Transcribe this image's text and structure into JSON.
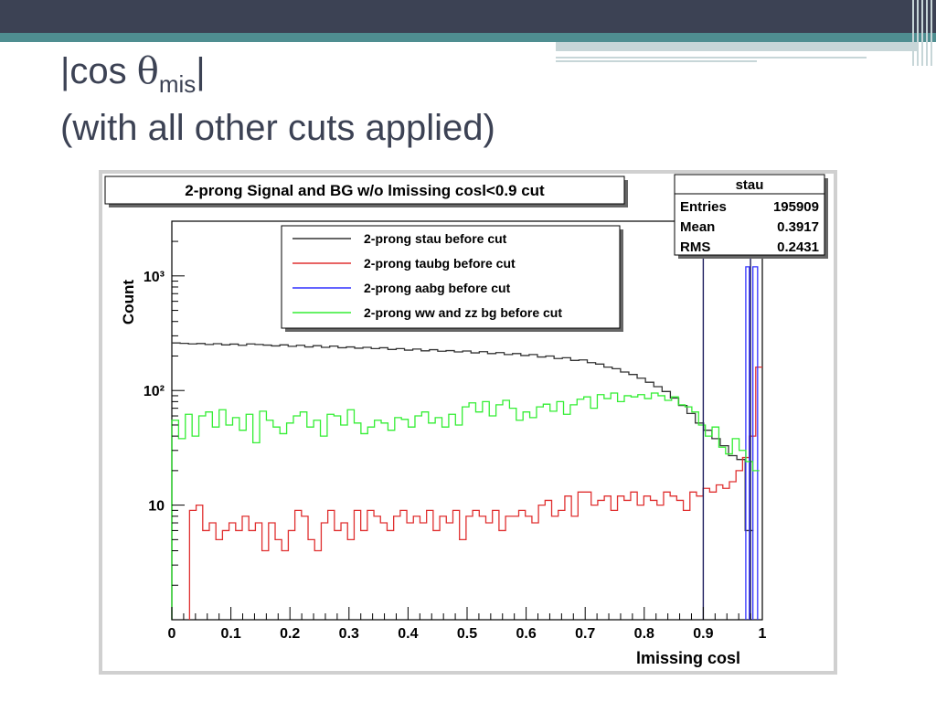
{
  "slide": {
    "title_prefix": "|cos ",
    "title_theta": "θ",
    "title_sub": "mis",
    "title_suffix": "|",
    "title_line2": "(with all other cuts applied)"
  },
  "chart_data": {
    "type": "line",
    "title": "2-prong Signal and BG w/o lmissing cosl<0.9 cut",
    "xlabel": "lmissing cosl",
    "ylabel": "Count",
    "xlim": [
      0,
      1
    ],
    "ylim": [
      1,
      3000
    ],
    "log_y": true,
    "grid": false,
    "legend_position": "top",
    "x_ticks": [
      "0",
      "0.1",
      "0.2",
      "0.3",
      "0.4",
      "0.5",
      "0.6",
      "0.7",
      "0.8",
      "0.9",
      "1"
    ],
    "y_ticks": [
      {
        "value": 10,
        "label": "10"
      },
      {
        "value": 100,
        "label": "10²"
      },
      {
        "value": 1000,
        "label": "10³"
      }
    ],
    "cut_lines": [
      0.9,
      0.98
    ],
    "stats_box": {
      "name": "stau",
      "rows": [
        {
          "label": "Entries",
          "value": "195909"
        },
        {
          "label": "Mean",
          "value": "0.3917"
        },
        {
          "label": "RMS",
          "value": "0.2431"
        }
      ]
    },
    "series": [
      {
        "name": "2-prong stau before cut",
        "color": "#333333",
        "values": [
          260,
          258,
          255,
          257,
          252,
          256,
          250,
          254,
          248,
          255,
          252,
          249,
          245,
          250,
          243,
          248,
          240,
          246,
          238,
          244,
          236,
          240,
          234,
          238,
          232,
          236,
          228,
          232,
          225,
          230,
          222,
          227,
          220,
          223,
          217,
          221,
          213,
          218,
          210,
          214,
          206,
          210,
          202,
          206,
          196,
          200,
          190,
          193,
          183,
          185,
          175,
          170,
          160,
          155,
          145,
          138,
          128,
          118,
          108,
          98,
          86,
          74,
          63,
          52,
          45,
          38,
          33,
          27,
          25,
          6
        ]
      },
      {
        "name": "2-prong taubg before cut",
        "color": "#e03030",
        "values": [
          9,
          10,
          6,
          7,
          5,
          6,
          7,
          6,
          8,
          6,
          7,
          4,
          7,
          5,
          4,
          6,
          9,
          8,
          5,
          4,
          7,
          9,
          6,
          7,
          5,
          9,
          6,
          9,
          8,
          7,
          6,
          8,
          9,
          7,
          8,
          7,
          9,
          6,
          8,
          7,
          9,
          5,
          8,
          9,
          8,
          7,
          9,
          6,
          8,
          8,
          9,
          8,
          7,
          10,
          11,
          8,
          9,
          12,
          8,
          13,
          13,
          10,
          11,
          12,
          9,
          12,
          11,
          13,
          10,
          12,
          11,
          10,
          13,
          12,
          11,
          9,
          13,
          12,
          14,
          13,
          15,
          14,
          16,
          20,
          26,
          40,
          160
        ]
      },
      {
        "name": "2-prong aabg before cut",
        "color": "#3030ff",
        "values": [
          1200
        ]
      },
      {
        "name": "2-prong ww and zz bg before cut",
        "color": "#33ee33",
        "values": [
          55,
          38,
          62,
          40,
          60,
          65,
          48,
          68,
          50,
          58,
          45,
          62,
          35,
          66,
          55,
          48,
          42,
          52,
          60,
          65,
          48,
          55,
          40,
          62,
          60,
          50,
          68,
          52,
          42,
          48,
          55,
          52,
          45,
          58,
          56,
          48,
          60,
          65,
          52,
          58,
          48,
          62,
          50,
          72,
          78,
          65,
          80,
          60,
          75,
          82,
          70,
          55,
          65,
          58,
          72,
          76,
          66,
          80,
          62,
          75,
          84,
          88,
          70,
          92,
          85,
          95,
          80,
          90,
          88,
          92,
          85,
          95,
          90,
          82,
          88,
          75,
          72,
          65,
          50,
          40,
          48,
          32,
          28,
          38,
          30,
          24,
          20
        ]
      }
    ]
  }
}
